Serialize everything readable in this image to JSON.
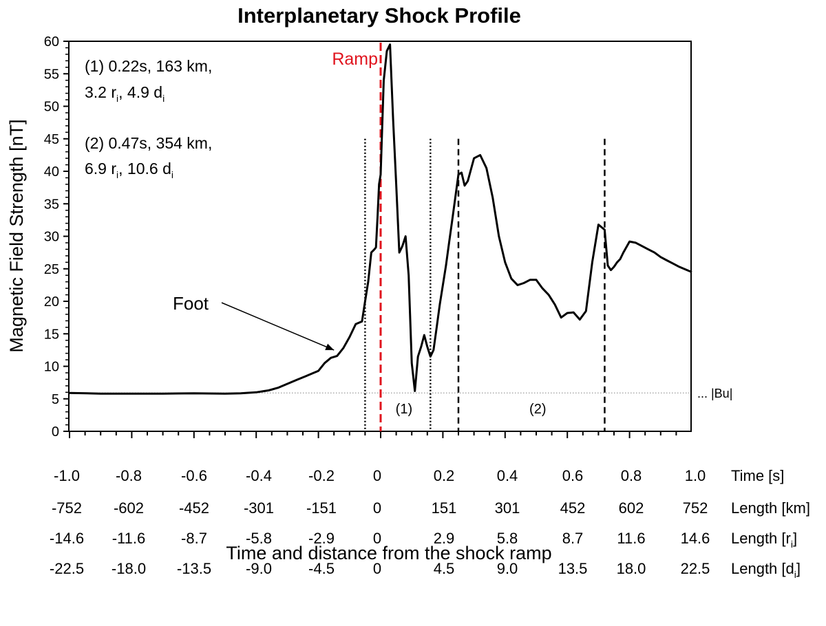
{
  "chart_data": {
    "type": "line",
    "title": "Interplanetary Shock Profile",
    "ylabel": "Magnetic Field Strength [nT]",
    "xlabel": "Time and distance from the shock ramp",
    "xlim": [
      -1.0,
      1.0
    ],
    "ylim": [
      0,
      60
    ],
    "y_ticks": [
      0,
      5,
      10,
      15,
      20,
      25,
      30,
      35,
      40,
      45,
      50,
      55,
      60
    ],
    "grid": false,
    "x_axis_rows": [
      {
        "label": "Time [s]",
        "ticks": [
          "-1.0",
          "-0.8",
          "-0.6",
          "-0.4",
          "-0.2",
          "0",
          "0.2",
          "0.4",
          "0.6",
          "0.8",
          "1.0"
        ]
      },
      {
        "label": "Length [km]",
        "ticks": [
          "-752",
          "-602",
          "-452",
          "-301",
          "-151",
          "0",
          "151",
          "301",
          "452",
          "602",
          "752"
        ]
      },
      {
        "label": "Length [r",
        "sub": "i",
        "suffix": "]",
        "ticks": [
          "-14.6",
          "-11.6",
          "-8.7",
          "-5.8",
          "-2.9",
          "0",
          "2.9",
          "5.8",
          "8.7",
          "11.6",
          "14.6"
        ]
      },
      {
        "label": "Length [d",
        "sub": "i",
        "suffix": "]",
        "ticks": [
          "-22.5",
          "-18.0",
          "-13.5",
          "-9.0",
          "-4.5",
          "0",
          "4.5",
          "9.0",
          "13.5",
          "18.0",
          "22.5"
        ]
      }
    ],
    "series": [
      {
        "x": [
          -1.0,
          -0.9,
          -0.8,
          -0.7,
          -0.6,
          -0.5,
          -0.45,
          -0.4,
          -0.36,
          -0.33,
          -0.3,
          -0.27,
          -0.24,
          -0.22,
          -0.2,
          -0.18,
          -0.16,
          -0.14,
          -0.12,
          -0.1,
          -0.08,
          -0.06,
          -0.05,
          -0.04,
          -0.03,
          -0.02,
          -0.015,
          -0.01,
          -0.005,
          0.0,
          0.005,
          0.01,
          0.02,
          0.03,
          0.04,
          0.05,
          0.06,
          0.07,
          0.08,
          0.09,
          0.1,
          0.11,
          0.12,
          0.13,
          0.14,
          0.15,
          0.16,
          0.17,
          0.18,
          0.19,
          0.2,
          0.21,
          0.22,
          0.23,
          0.24,
          0.25,
          0.26,
          0.27,
          0.28,
          0.3,
          0.32,
          0.34,
          0.36,
          0.38,
          0.4,
          0.42,
          0.44,
          0.46,
          0.48,
          0.5,
          0.52,
          0.54,
          0.56,
          0.58,
          0.6,
          0.62,
          0.64,
          0.66,
          0.68,
          0.7,
          0.72,
          0.73,
          0.74,
          0.75,
          0.76,
          0.77,
          0.78,
          0.8,
          0.82,
          0.84,
          0.86,
          0.88,
          0.9,
          0.92,
          0.94,
          0.96,
          0.98,
          1.0
        ],
        "y": [
          5.9,
          5.8,
          5.8,
          5.8,
          5.85,
          5.8,
          5.85,
          6.0,
          6.3,
          6.7,
          7.3,
          7.9,
          8.5,
          8.9,
          9.3,
          10.5,
          11.3,
          11.6,
          12.8,
          14.5,
          16.5,
          16.9,
          20.0,
          23.0,
          27.5,
          28.0,
          28.3,
          33.0,
          38.0,
          39.5,
          47.0,
          54.0,
          58.5,
          59.5,
          48.0,
          38.0,
          27.5,
          28.5,
          30.0,
          24.0,
          10.5,
          6.2,
          11.5,
          13.0,
          14.8,
          13.0,
          11.5,
          12.5,
          16.0,
          19.5,
          22.5,
          25.5,
          29.0,
          32.5,
          36.0,
          39.5,
          39.8,
          37.8,
          38.5,
          42.0,
          42.5,
          40.5,
          36.0,
          30.0,
          26.0,
          23.5,
          22.5,
          22.8,
          23.3,
          23.3,
          22.0,
          21.0,
          19.5,
          17.5,
          18.2,
          18.3,
          17.2,
          18.5,
          26.0,
          31.8,
          31.0,
          25.5,
          24.8,
          25.3,
          26.0,
          26.5,
          27.5,
          29.2,
          29.0,
          28.5,
          28.0,
          27.5,
          26.8,
          26.3,
          25.8,
          25.3,
          24.9,
          24.5
        ]
      }
    ],
    "baseline": {
      "y": 5.9,
      "label": "... |Bu|"
    },
    "ramp_line": {
      "x": 0.0,
      "label": "Ramp",
      "color": "#e0141e"
    },
    "dotted_vlines": [
      -0.05,
      0.16
    ],
    "dashed_vlines": [
      0.25,
      0.72
    ],
    "region_labels": [
      {
        "text": "(1)",
        "x": 0.075,
        "y": 3.5
      },
      {
        "text": "(2)",
        "x": 0.505,
        "y": 3.5
      }
    ],
    "annotations": {
      "foot": {
        "text": "Foot",
        "arrow_from": [
          -0.42,
          19.5
        ],
        "arrow_to": [
          -0.15,
          12.5
        ]
      },
      "info1": {
        "line1": "(1) 0.22s, 163 km,",
        "line2a": "3.2 r",
        "line2b": ", 4.9 d",
        "sub": "i"
      },
      "info2": {
        "line1": "(2) 0.47s, 354 km,",
        "line2a": "6.9 r",
        "line2b": ", 10.6 d",
        "sub": "i"
      }
    }
  }
}
